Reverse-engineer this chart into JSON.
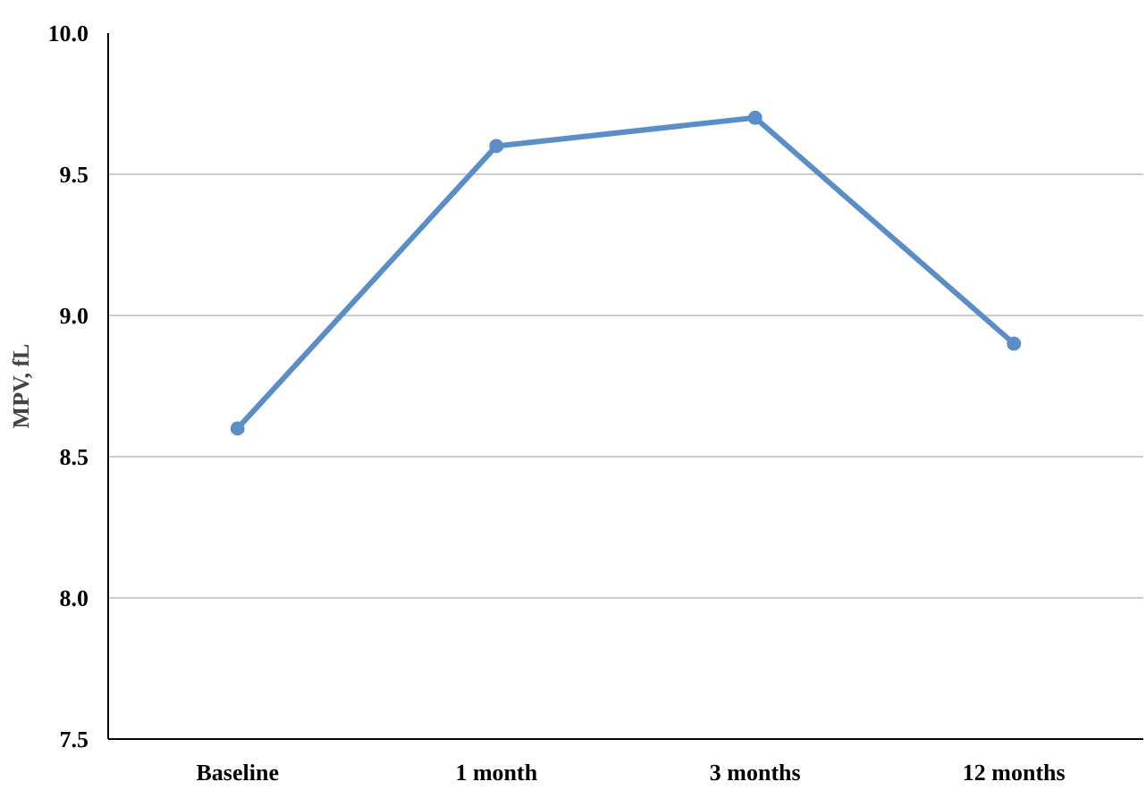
{
  "chart_data": {
    "type": "line",
    "ylabel": "MPV, fL",
    "categories": [
      "Baseline",
      "1 month",
      "3 months",
      "12 months"
    ],
    "series": [
      {
        "color": "#5b8ec6",
        "values": [
          8.6,
          9.6,
          9.7,
          8.9
        ]
      }
    ],
    "ylim": [
      7.5,
      10.0
    ],
    "yticks": [
      {
        "value": 7.5,
        "label": "7.5"
      },
      {
        "value": 8.0,
        "label": "8.0"
      },
      {
        "value": 8.5,
        "label": "8.5"
      },
      {
        "value": 9.0,
        "label": "9.0"
      },
      {
        "value": 9.5,
        "label": "9.5"
      },
      {
        "value": 10.0,
        "label": "10.0"
      }
    ],
    "grid": "y",
    "marker": "circle",
    "line_style": "solid"
  }
}
